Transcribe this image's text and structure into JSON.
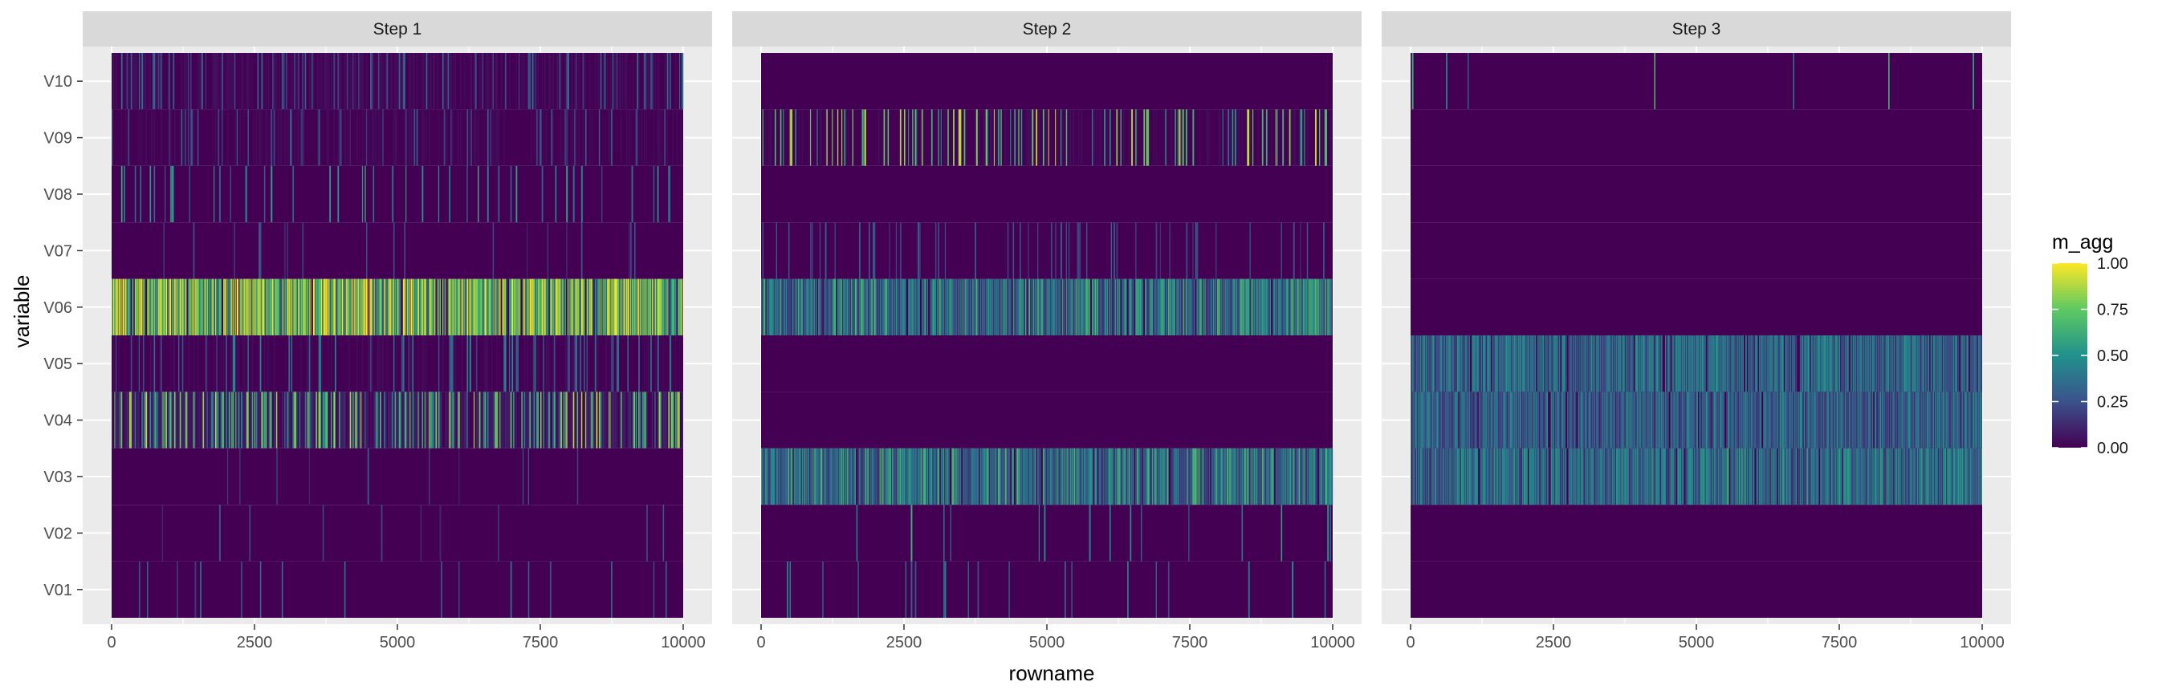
{
  "chart_data": {
    "type": "heatmap",
    "facets": [
      {
        "label": "Step 1",
        "rows": {
          "V10": {
            "base": 0.04,
            "density": 0.16,
            "level": 0.35
          },
          "V09": {
            "base": 0.03,
            "density": 0.12,
            "level": 0.3
          },
          "V08": {
            "base": 0.02,
            "density": 0.09,
            "level": 0.55
          },
          "V07": {
            "base": 0.02,
            "density": 0.05,
            "level": 0.25
          },
          "V06": {
            "base": 0.72,
            "density": 0.7,
            "level": 0.95
          },
          "V05": {
            "base": 0.03,
            "density": 0.16,
            "level": 0.45
          },
          "V04": {
            "base": 0.1,
            "density": 0.4,
            "level": 0.8
          },
          "V03": {
            "base": 0.01,
            "density": 0.03,
            "level": 0.25
          },
          "V02": {
            "base": 0.01,
            "density": 0.03,
            "level": 0.25
          },
          "V01": {
            "base": 0.01,
            "density": 0.04,
            "level": 0.35
          }
        }
      },
      {
        "label": "Step 2",
        "rows": {
          "V10": {
            "base": 0.0,
            "density": 0.0,
            "level": 0.0
          },
          "V09": {
            "base": 0.03,
            "density": 0.22,
            "level": 0.85
          },
          "V08": {
            "base": 0.01,
            "density": 0.0,
            "level": 0.0
          },
          "V07": {
            "base": 0.02,
            "density": 0.1,
            "level": 0.3
          },
          "V06": {
            "base": 0.35,
            "density": 0.7,
            "level": 0.6
          },
          "V05": {
            "base": 0.0,
            "density": 0.0,
            "level": 0.0
          },
          "V04": {
            "base": 0.0,
            "density": 0.0,
            "level": 0.0
          },
          "V03": {
            "base": 0.35,
            "density": 0.65,
            "level": 0.6
          },
          "V02": {
            "base": 0.02,
            "density": 0.03,
            "level": 0.6
          },
          "V01": {
            "base": 0.02,
            "density": 0.05,
            "level": 0.45
          }
        }
      },
      {
        "label": "Step 3",
        "rows": {
          "V10": {
            "base": 0.0,
            "density": 0.012,
            "level": 0.8
          },
          "V09": {
            "base": 0.0,
            "density": 0.0,
            "level": 0.0
          },
          "V08": {
            "base": 0.0,
            "density": 0.0,
            "level": 0.0
          },
          "V07": {
            "base": 0.0,
            "density": 0.0,
            "level": 0.0
          },
          "V06": {
            "base": 0.0,
            "density": 0.0,
            "level": 0.0
          },
          "V05": {
            "base": 0.4,
            "density": 0.75,
            "level": 0.45
          },
          "V04": {
            "base": 0.32,
            "density": 0.75,
            "level": 0.45
          },
          "V03": {
            "base": 0.4,
            "density": 0.75,
            "level": 0.5
          },
          "V02": {
            "base": 0.0,
            "density": 0.0,
            "level": 0.0
          },
          "V01": {
            "base": 0.0,
            "density": 0.0,
            "level": 0.0
          }
        }
      }
    ],
    "variables": [
      "V10",
      "V09",
      "V08",
      "V07",
      "V06",
      "V05",
      "V04",
      "V03",
      "V02",
      "V01"
    ],
    "x_ticks": [
      0,
      2500,
      5000,
      7500,
      10000
    ],
    "x_tick_labels": [
      "0",
      "2500",
      "5000",
      "7500",
      "10000"
    ],
    "xlim": [
      0,
      10000
    ],
    "xlabel": "rowname",
    "ylabel": "variable",
    "legend": {
      "title": "m_agg",
      "placement": "right",
      "ticks": [
        1.0,
        0.75,
        0.5,
        0.25,
        0.0
      ],
      "tick_labels": [
        "1.00",
        "0.75",
        "0.50",
        "0.25",
        "0.00"
      ],
      "colors": [
        "#440154",
        "#3b528b",
        "#21918c",
        "#5ec962",
        "#fde725"
      ]
    },
    "grid": true
  }
}
